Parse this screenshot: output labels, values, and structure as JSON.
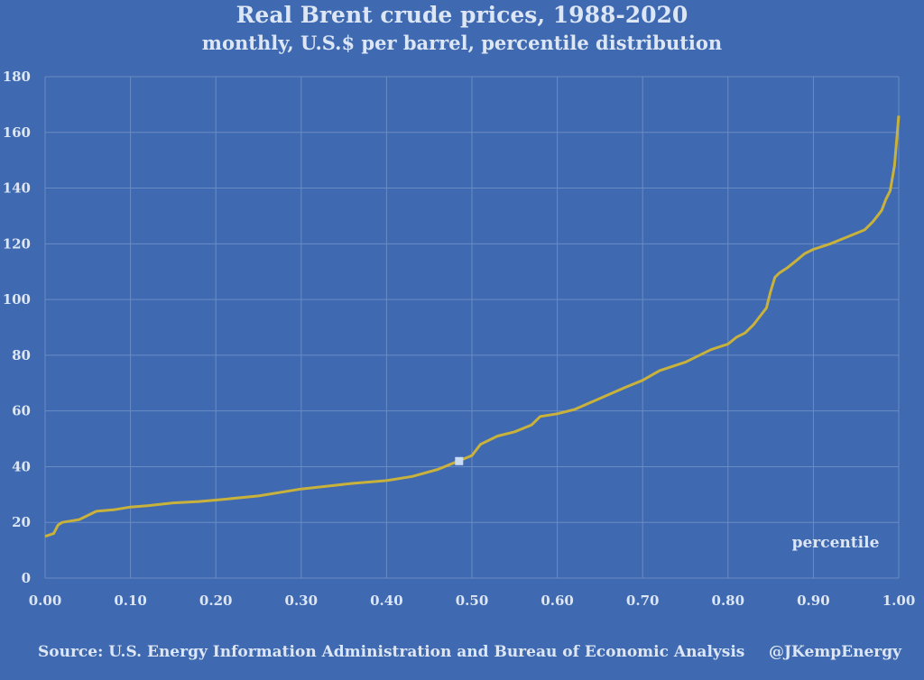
{
  "colors": {
    "background": "#3f69b0",
    "text": "#dce6f5",
    "grid": "#6a8cc4",
    "line": "#c8b23c",
    "marker": "#c9dcf2"
  },
  "footer": {
    "source": "Source: U.S. Energy Information Administration and Bureau of Economic Analysis",
    "credit": "@JKempEnergy"
  },
  "chart_data": {
    "type": "line",
    "title": "Real Brent crude prices, 1988-2020",
    "subtitle": "monthly, U.S.$ per barrel, percentile distribution",
    "xlabel": "",
    "ylabel": "",
    "annotation": "percentile",
    "xlim": [
      0,
      1
    ],
    "ylim": [
      0,
      180
    ],
    "xticks": [
      "0.00",
      "0.10",
      "0.20",
      "0.30",
      "0.40",
      "0.50",
      "0.60",
      "0.70",
      "0.80",
      "0.90",
      "1.00"
    ],
    "yticks": [
      "0",
      "20",
      "40",
      "60",
      "80",
      "100",
      "120",
      "140",
      "160",
      "180"
    ],
    "grid": true,
    "legend": "none",
    "series": [
      {
        "x": [
          0.0,
          0.01,
          0.015,
          0.02,
          0.03,
          0.04,
          0.05,
          0.06,
          0.08,
          0.1,
          0.12,
          0.15,
          0.18,
          0.2,
          0.25,
          0.3,
          0.33,
          0.36,
          0.4,
          0.43,
          0.46,
          0.48,
          0.5,
          0.51,
          0.53,
          0.55,
          0.57,
          0.58,
          0.6,
          0.62,
          0.65,
          0.68,
          0.7,
          0.72,
          0.75,
          0.78,
          0.8,
          0.81,
          0.82,
          0.83,
          0.84,
          0.845,
          0.85,
          0.855,
          0.86,
          0.87,
          0.88,
          0.89,
          0.9,
          0.92,
          0.94,
          0.96,
          0.97,
          0.98,
          0.985,
          0.99,
          0.995,
          1.0
        ],
        "values": [
          15,
          16,
          19,
          20,
          20.5,
          21,
          22.5,
          24,
          24.5,
          25.5,
          26,
          27,
          27.5,
          28,
          29.5,
          32,
          33,
          34,
          35,
          36.5,
          39,
          41.5,
          44,
          48,
          51,
          52.5,
          55,
          58,
          59,
          60.5,
          64.5,
          68.5,
          71,
          74.5,
          77.5,
          82,
          84,
          86.5,
          88,
          91,
          95,
          97,
          103,
          108,
          109.5,
          111.5,
          114,
          116.5,
          118,
          120,
          122.5,
          125,
          128,
          132,
          136,
          139,
          148,
          166
        ]
      }
    ],
    "marker_point": {
      "x": 0.485,
      "y": 42
    }
  }
}
